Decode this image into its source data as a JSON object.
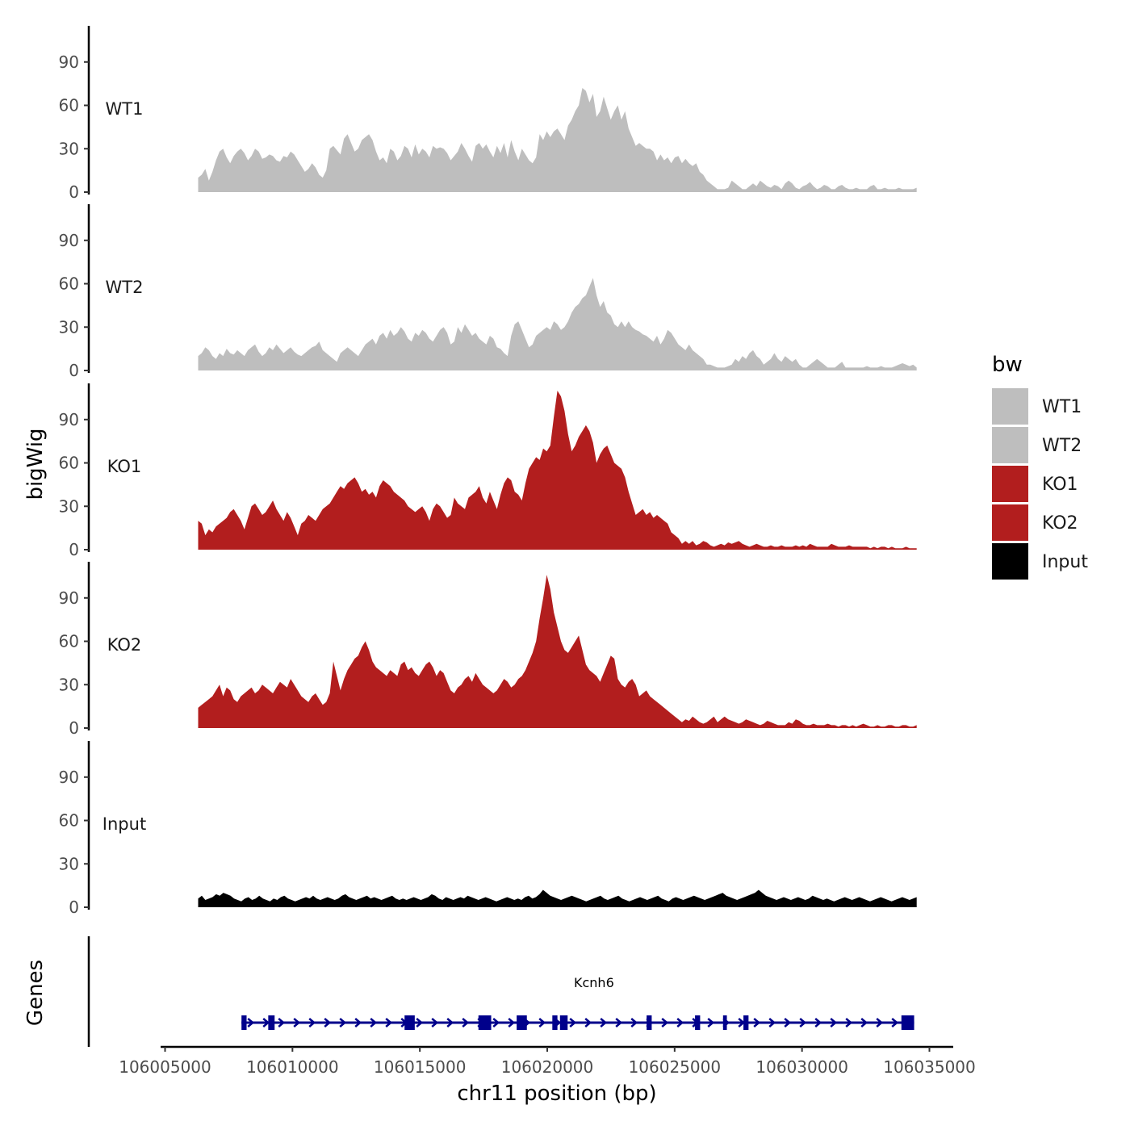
{
  "chart_data": {
    "type": "area",
    "title": "",
    "xlabel": "chr11 position (bp)",
    "ylabel": "bigWig",
    "genes_label": "Genes",
    "xlim": [
      106005000,
      106035000
    ],
    "x_ticks": [
      "106005000",
      "106010000",
      "106015000",
      "106020000",
      "106025000",
      "106030000",
      "106035000"
    ],
    "ylim": [
      0,
      115
    ],
    "y_ticks": [
      "0",
      "30",
      "60",
      "90"
    ],
    "track_x_range": [
      106006300,
      106034500
    ],
    "legend": {
      "title": "bw",
      "position": "right",
      "entries": [
        {
          "label": "WT1",
          "color": "#bebebe"
        },
        {
          "label": "WT2",
          "color": "#bebebe"
        },
        {
          "label": "KO1",
          "color": "#b21e1e"
        },
        {
          "label": "KO2",
          "color": "#b21e1e"
        },
        {
          "label": "Input",
          "color": "#000000"
        }
      ]
    },
    "series": [
      {
        "name": "WT1",
        "color": "#bebebe",
        "values": [
          10,
          12,
          16,
          8,
          14,
          22,
          28,
          30,
          24,
          20,
          25,
          28,
          30,
          27,
          22,
          25,
          30,
          28,
          23,
          24,
          26,
          25,
          22,
          21,
          25,
          24,
          28,
          26,
          22,
          18,
          14,
          16,
          20,
          17,
          12,
          10,
          15,
          30,
          32,
          29,
          26,
          37,
          40,
          34,
          28,
          30,
          36,
          38,
          40,
          36,
          28,
          22,
          24,
          20,
          30,
          28,
          22,
          25,
          32,
          30,
          24,
          33,
          26,
          30,
          28,
          24,
          32,
          30,
          31,
          30,
          27,
          22,
          25,
          28,
          34,
          30,
          25,
          21,
          32,
          34,
          30,
          33,
          28,
          24,
          32,
          27,
          34,
          24,
          36,
          28,
          22,
          30,
          26,
          22,
          20,
          24,
          40,
          36,
          42,
          38,
          42,
          44,
          40,
          36,
          46,
          50,
          56,
          60,
          72,
          70,
          62,
          68,
          52,
          56,
          66,
          58,
          50,
          56,
          60,
          50,
          56,
          44,
          38,
          32,
          34,
          32,
          30,
          30,
          28,
          22,
          26,
          22,
          24,
          20,
          24,
          25,
          20,
          23,
          20,
          18,
          20,
          14,
          12,
          8,
          6,
          4,
          2,
          2,
          2,
          3,
          8,
          6,
          4,
          2,
          2,
          4,
          6,
          4,
          8,
          6,
          4,
          3,
          5,
          4,
          2,
          6,
          8,
          6,
          3,
          2,
          4,
          5,
          7,
          4,
          2,
          3,
          5,
          4,
          2,
          2,
          4,
          5,
          3,
          2,
          2,
          3,
          2,
          2,
          2,
          4,
          5,
          2,
          2,
          3,
          2,
          2,
          2,
          3,
          2,
          2,
          2,
          2,
          3
        ]
      },
      {
        "name": "WT2",
        "color": "#bebebe",
        "values": [
          10,
          12,
          16,
          14,
          10,
          8,
          12,
          10,
          15,
          12,
          11,
          14,
          12,
          10,
          14,
          16,
          18,
          13,
          10,
          12,
          16,
          14,
          18,
          15,
          12,
          14,
          16,
          13,
          11,
          10,
          12,
          14,
          16,
          17,
          20,
          14,
          12,
          10,
          8,
          6,
          12,
          14,
          16,
          14,
          12,
          10,
          14,
          18,
          20,
          22,
          18,
          24,
          26,
          22,
          28,
          24,
          26,
          30,
          27,
          22,
          20,
          26,
          24,
          28,
          26,
          22,
          20,
          24,
          28,
          30,
          26,
          18,
          20,
          30,
          26,
          32,
          28,
          24,
          26,
          22,
          20,
          18,
          24,
          22,
          16,
          15,
          12,
          10,
          24,
          32,
          34,
          28,
          22,
          16,
          18,
          24,
          26,
          28,
          30,
          28,
          34,
          32,
          28,
          30,
          34,
          40,
          44,
          46,
          50,
          52,
          58,
          64,
          52,
          44,
          48,
          40,
          38,
          32,
          30,
          34,
          30,
          34,
          30,
          28,
          27,
          25,
          24,
          22,
          20,
          24,
          18,
          22,
          28,
          26,
          22,
          18,
          16,
          14,
          18,
          14,
          12,
          10,
          8,
          4,
          4,
          3,
          2,
          2,
          2,
          3,
          4,
          8,
          6,
          10,
          8,
          12,
          14,
          10,
          8,
          4,
          6,
          8,
          12,
          8,
          6,
          10,
          8,
          6,
          8,
          4,
          2,
          2,
          4,
          6,
          8,
          6,
          4,
          2,
          2,
          2,
          4,
          6,
          2,
          2,
          2,
          2,
          2,
          2,
          3,
          2,
          2,
          2,
          3,
          2,
          2,
          2,
          3,
          4,
          5,
          4,
          3,
          4,
          2
        ]
      },
      {
        "name": "KO1",
        "color": "#b21e1e",
        "values": [
          20,
          18,
          10,
          14,
          12,
          16,
          18,
          20,
          22,
          26,
          28,
          24,
          20,
          14,
          22,
          30,
          32,
          28,
          24,
          26,
          30,
          34,
          28,
          24,
          20,
          26,
          22,
          16,
          10,
          18,
          20,
          24,
          22,
          20,
          24,
          28,
          30,
          32,
          36,
          40,
          44,
          42,
          46,
          48,
          50,
          46,
          40,
          42,
          38,
          40,
          36,
          44,
          48,
          46,
          44,
          40,
          38,
          36,
          34,
          30,
          28,
          26,
          28,
          30,
          26,
          20,
          28,
          32,
          30,
          26,
          22,
          24,
          36,
          32,
          30,
          28,
          36,
          38,
          40,
          44,
          36,
          32,
          40,
          34,
          28,
          38,
          46,
          50,
          48,
          40,
          38,
          34,
          46,
          56,
          60,
          64,
          62,
          70,
          68,
          72,
          92,
          110,
          106,
          96,
          80,
          68,
          72,
          78,
          82,
          86,
          82,
          74,
          60,
          66,
          70,
          72,
          66,
          60,
          58,
          56,
          50,
          40,
          32,
          24,
          26,
          28,
          24,
          26,
          22,
          24,
          22,
          20,
          18,
          12,
          10,
          8,
          4,
          6,
          4,
          6,
          3,
          4,
          6,
          5,
          3,
          2,
          3,
          4,
          3,
          5,
          4,
          5,
          6,
          4,
          3,
          2,
          3,
          4,
          3,
          2,
          2,
          3,
          2,
          2,
          3,
          2,
          2,
          2,
          3,
          2,
          3,
          2,
          4,
          3,
          2,
          2,
          2,
          2,
          4,
          3,
          2,
          2,
          2,
          3,
          2,
          2,
          2,
          2,
          2,
          1,
          2,
          1,
          2,
          2,
          1,
          2,
          1,
          1,
          1,
          2,
          1,
          1,
          1
        ]
      },
      {
        "name": "KO2",
        "color": "#b21e1e",
        "values": [
          14,
          16,
          18,
          20,
          22,
          26,
          30,
          22,
          28,
          26,
          20,
          18,
          22,
          24,
          26,
          28,
          24,
          26,
          30,
          28,
          26,
          24,
          28,
          32,
          30,
          28,
          34,
          30,
          26,
          22,
          20,
          18,
          22,
          24,
          20,
          16,
          18,
          24,
          46,
          36,
          26,
          34,
          40,
          44,
          48,
          50,
          56,
          60,
          54,
          46,
          42,
          40,
          38,
          36,
          40,
          38,
          36,
          44,
          46,
          40,
          42,
          38,
          36,
          40,
          44,
          46,
          42,
          36,
          40,
          38,
          32,
          26,
          24,
          28,
          30,
          34,
          36,
          32,
          38,
          34,
          30,
          28,
          26,
          24,
          26,
          30,
          34,
          32,
          28,
          30,
          34,
          36,
          40,
          46,
          52,
          60,
          76,
          90,
          106,
          96,
          80,
          70,
          60,
          54,
          52,
          56,
          60,
          64,
          54,
          44,
          40,
          38,
          36,
          32,
          38,
          44,
          50,
          48,
          34,
          30,
          28,
          32,
          34,
          30,
          22,
          24,
          26,
          22,
          20,
          18,
          16,
          14,
          12,
          10,
          8,
          6,
          4,
          6,
          5,
          8,
          6,
          4,
          3,
          4,
          6,
          8,
          4,
          6,
          8,
          6,
          5,
          4,
          3,
          4,
          6,
          5,
          4,
          3,
          2,
          3,
          5,
          4,
          3,
          2,
          2,
          2,
          4,
          3,
          6,
          5,
          3,
          2,
          2,
          3,
          2,
          2,
          2,
          3,
          2,
          2,
          1,
          2,
          2,
          1,
          2,
          1,
          2,
          3,
          2,
          1,
          1,
          2,
          1,
          1,
          2,
          2,
          1,
          1,
          2,
          2,
          1,
          1,
          2
        ]
      },
      {
        "name": "Input",
        "color": "#000000",
        "values": [
          6,
          8,
          5,
          6,
          7,
          9,
          8,
          10,
          9,
          8,
          6,
          5,
          4,
          6,
          7,
          5,
          6,
          8,
          6,
          5,
          4,
          6,
          5,
          7,
          8,
          6,
          5,
          4,
          5,
          6,
          7,
          6,
          8,
          6,
          5,
          6,
          7,
          6,
          5,
          6,
          8,
          9,
          7,
          6,
          5,
          6,
          7,
          8,
          6,
          7,
          6,
          5,
          6,
          7,
          8,
          6,
          5,
          6,
          5,
          6,
          7,
          6,
          5,
          6,
          7,
          9,
          8,
          6,
          5,
          7,
          6,
          5,
          6,
          7,
          6,
          8,
          7,
          6,
          5,
          6,
          7,
          6,
          5,
          4,
          5,
          6,
          7,
          6,
          5,
          6,
          5,
          7,
          8,
          6,
          7,
          9,
          12,
          10,
          8,
          7,
          6,
          5,
          6,
          7,
          8,
          7,
          6,
          5,
          4,
          5,
          6,
          7,
          8,
          6,
          5,
          6,
          7,
          8,
          6,
          5,
          4,
          5,
          6,
          7,
          6,
          5,
          6,
          7,
          8,
          6,
          5,
          4,
          6,
          7,
          6,
          5,
          6,
          7,
          8,
          7,
          6,
          5,
          6,
          7,
          8,
          9,
          10,
          8,
          7,
          6,
          5,
          6,
          7,
          8,
          9,
          10,
          12,
          10,
          8,
          7,
          6,
          5,
          6,
          7,
          6,
          5,
          6,
          7,
          6,
          5,
          6,
          8,
          7,
          6,
          5,
          6,
          5,
          4,
          5,
          6,
          7,
          6,
          5,
          6,
          7,
          6,
          5,
          4,
          5,
          6,
          7,
          6,
          5,
          4,
          5,
          6,
          7,
          6,
          5,
          6,
          7
        ]
      }
    ],
    "genes": [
      {
        "name": "Kcnh6",
        "strand": "+",
        "start": 106008000,
        "end": 106034400,
        "exons": [
          [
            106008000,
            106008200
          ],
          [
            106009050,
            106009300
          ],
          [
            106014400,
            106014800
          ],
          [
            106017300,
            106017800
          ],
          [
            106018800,
            106019200
          ],
          [
            106020200,
            106020400
          ],
          [
            106020500,
            106020800
          ],
          [
            106023900,
            106024100
          ],
          [
            106025800,
            106026000
          ],
          [
            106026900,
            106027050
          ],
          [
            106027700,
            106027900
          ],
          [
            106033900,
            106034400
          ]
        ]
      }
    ]
  }
}
